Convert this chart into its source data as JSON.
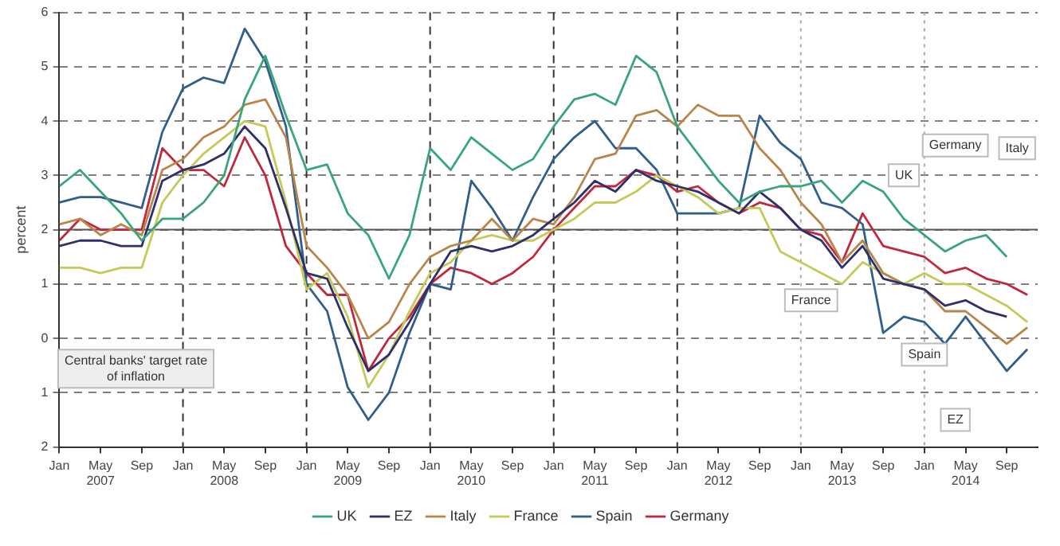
{
  "chart_data": {
    "type": "line",
    "ylabel": "percent",
    "x": [
      "2007-01",
      "2007-03",
      "2007-05",
      "2007-07",
      "2007-09",
      "2007-11",
      "2008-01",
      "2008-03",
      "2008-05",
      "2008-07",
      "2008-09",
      "2008-11",
      "2009-01",
      "2009-03",
      "2009-05",
      "2009-07",
      "2009-09",
      "2009-11",
      "2010-01",
      "2010-03",
      "2010-05",
      "2010-07",
      "2010-09",
      "2010-11",
      "2011-01",
      "2011-03",
      "2011-05",
      "2011-07",
      "2011-09",
      "2011-11",
      "2012-01",
      "2012-03",
      "2012-05",
      "2012-07",
      "2012-09",
      "2012-11",
      "2013-01",
      "2013-03",
      "2013-05",
      "2013-07",
      "2013-09",
      "2013-11",
      "2014-01",
      "2014-03",
      "2014-05",
      "2014-07",
      "2014-09",
      "2014-11"
    ],
    "series": [
      {
        "name": "UK",
        "color": "#3aa57a",
        "values": [
          2.8,
          3.1,
          2.7,
          2.3,
          1.8,
          2.2,
          2.2,
          2.5,
          3.0,
          4.4,
          5.2,
          4.1,
          3.1,
          3.2,
          2.3,
          1.9,
          1.1,
          1.9,
          3.5,
          3.1,
          3.7,
          3.4,
          3.1,
          3.3,
          3.9,
          4.4,
          4.5,
          4.3,
          5.2,
          4.9,
          3.9,
          3.4,
          2.9,
          2.5,
          2.7,
          2.8,
          2.8,
          2.9,
          2.5,
          2.9,
          2.7,
          2.2,
          1.9,
          1.6,
          1.8,
          1.9,
          1.5,
          null
        ]
      },
      {
        "name": "EZ",
        "color": "#2e2f6b",
        "values": [
          1.7,
          1.8,
          1.8,
          1.7,
          1.7,
          2.9,
          3.1,
          3.2,
          3.4,
          3.9,
          3.5,
          2.4,
          1.2,
          1.1,
          0.2,
          -0.6,
          -0.3,
          0.3,
          1.0,
          1.6,
          1.7,
          1.6,
          1.7,
          1.9,
          2.2,
          2.5,
          2.9,
          2.7,
          3.1,
          2.9,
          2.8,
          2.7,
          2.5,
          2.3,
          2.7,
          2.4,
          2.0,
          1.8,
          1.3,
          1.7,
          1.1,
          1.0,
          0.9,
          0.6,
          0.7,
          0.5,
          0.4,
          null
        ]
      },
      {
        "name": "Italy",
        "color": "#b8864a",
        "values": [
          2.1,
          2.2,
          1.9,
          2.1,
          1.9,
          3.1,
          3.3,
          3.7,
          3.9,
          4.3,
          4.4,
          3.7,
          1.7,
          1.3,
          0.8,
          0.0,
          0.3,
          1.0,
          1.5,
          1.7,
          1.8,
          2.2,
          1.8,
          2.2,
          2.1,
          2.6,
          3.3,
          3.4,
          4.1,
          4.2,
          3.9,
          4.3,
          4.1,
          4.1,
          3.5,
          3.1,
          2.5,
          2.1,
          1.4,
          1.8,
          1.2,
          1.0,
          0.9,
          0.5,
          0.5,
          0.2,
          -0.1,
          0.2
        ]
      },
      {
        "name": "France",
        "color": "#c4c95a",
        "values": [
          1.3,
          1.3,
          1.2,
          1.3,
          1.3,
          2.5,
          3.0,
          3.4,
          3.7,
          4.0,
          3.9,
          2.5,
          0.9,
          1.2,
          0.4,
          -0.9,
          -0.3,
          0.5,
          1.2,
          1.4,
          1.8,
          1.9,
          1.8,
          1.8,
          2.0,
          2.2,
          2.5,
          2.5,
          2.7,
          3.0,
          2.8,
          2.6,
          2.3,
          2.4,
          2.4,
          1.6,
          1.4,
          1.2,
          1.0,
          1.4,
          1.2,
          1.0,
          1.2,
          1.0,
          1.0,
          0.8,
          0.6,
          0.3
        ]
      },
      {
        "name": "Spain",
        "color": "#2f5f8a",
        "values": [
          2.5,
          2.6,
          2.6,
          2.5,
          2.4,
          3.8,
          4.6,
          4.8,
          4.7,
          5.7,
          5.1,
          3.9,
          1.0,
          0.5,
          -0.9,
          -1.5,
          -1.0,
          0.1,
          1.0,
          0.9,
          2.9,
          2.4,
          1.8,
          2.6,
          3.3,
          3.7,
          4.0,
          3.5,
          3.5,
          3.1,
          2.3,
          2.3,
          2.3,
          2.4,
          4.1,
          3.6,
          3.3,
          2.5,
          2.4,
          2.1,
          0.1,
          0.4,
          0.3,
          -0.1,
          0.4,
          -0.1,
          -0.6,
          -0.2
        ]
      },
      {
        "name": "Germany",
        "color": "#c0283c",
        "values": [
          1.8,
          2.2,
          2.0,
          2.0,
          2.0,
          3.5,
          3.1,
          3.1,
          2.8,
          3.7,
          3.0,
          1.7,
          1.2,
          0.8,
          0.8,
          -0.6,
          0.0,
          0.4,
          1.0,
          1.3,
          1.2,
          1.0,
          1.2,
          1.5,
          2.0,
          2.4,
          2.8,
          2.8,
          3.1,
          3.0,
          2.7,
          2.8,
          2.5,
          2.3,
          2.5,
          2.4,
          2.0,
          1.9,
          1.4,
          2.3,
          1.7,
          1.6,
          1.5,
          1.2,
          1.3,
          1.1,
          1.0,
          0.8
        ]
      }
    ],
    "xlim": [
      "2007-01",
      "2014-12"
    ],
    "xticks": [
      {
        "value": "2007-01",
        "label": "Jan"
      },
      {
        "value": "2007-05",
        "label": "May\n2007"
      },
      {
        "value": "2007-09",
        "label": "Sep"
      },
      {
        "value": "2008-01",
        "label": "Jan"
      },
      {
        "value": "2008-05",
        "label": "May\n2008"
      },
      {
        "value": "2008-09",
        "label": "Sep"
      },
      {
        "value": "2009-01",
        "label": "Jan"
      },
      {
        "value": "2009-05",
        "label": "May\n2009"
      },
      {
        "value": "2009-09",
        "label": "Sep"
      },
      {
        "value": "2010-01",
        "label": "Jan"
      },
      {
        "value": "2010-05",
        "label": "May\n2010"
      },
      {
        "value": "2010-09",
        "label": "Sep"
      },
      {
        "value": "2011-01",
        "label": "Jan"
      },
      {
        "value": "2011-05",
        "label": "May\n2011"
      },
      {
        "value": "2011-09",
        "label": "Sep"
      },
      {
        "value": "2012-01",
        "label": "Jan"
      },
      {
        "value": "2012-05",
        "label": "May\n2012"
      },
      {
        "value": "2012-09",
        "label": "Sep"
      },
      {
        "value": "2013-01",
        "label": "Jan"
      },
      {
        "value": "2013-05",
        "label": "May\n2013"
      },
      {
        "value": "2013-09",
        "label": "Sep"
      },
      {
        "value": "2014-01",
        "label": "Jan"
      },
      {
        "value": "2014-05",
        "label": "May\n2014"
      },
      {
        "value": "2014-09",
        "label": "Sep"
      }
    ],
    "ylim": [
      -2,
      6
    ],
    "yticks": [
      {
        "value": -2,
        "label": "2"
      },
      {
        "value": -1,
        "label": "1"
      },
      0,
      1,
      2,
      3,
      4,
      5,
      6
    ],
    "grid": "y",
    "legend": "bottom",
    "marker": "none",
    "line_style": "solid",
    "ref_lines": [
      {
        "axis": "y",
        "value": 2,
        "color": "#555555",
        "line_style": "solid"
      },
      {
        "axis": "x",
        "value": "2008-01",
        "color": "#333333",
        "line_style": "dashed"
      },
      {
        "axis": "x",
        "value": "2009-01",
        "color": "#333333",
        "line_style": "dashed"
      },
      {
        "axis": "x",
        "value": "2010-01",
        "color": "#333333",
        "line_style": "dashed"
      },
      {
        "axis": "x",
        "value": "2011-01",
        "color": "#333333",
        "line_style": "dashed"
      },
      {
        "axis": "x",
        "value": "2012-01",
        "color": "#333333",
        "line_style": "dashed"
      },
      {
        "axis": "x",
        "value": "2013-01",
        "color": "#aaaaaa",
        "line_style": "dotted"
      },
      {
        "axis": "x",
        "value": "2014-01",
        "color": "#aaaaaa",
        "line_style": "dotted"
      }
    ],
    "annotations": [
      "Central banks' target rate of inflation",
      {
        "text": "UK",
        "x": "2013-11",
        "y": 3.0
      },
      {
        "text": "Germany",
        "x": "2014-04",
        "y": 3.55
      },
      {
        "text": "Italy",
        "x": "2014-10",
        "y": 3.5
      },
      {
        "text": "France",
        "x": "2013-02",
        "y": 0.7
      },
      {
        "text": "Spain",
        "x": "2014-01",
        "y": -0.3
      },
      {
        "text": "EZ",
        "x": "2014-04",
        "y": -1.5
      }
    ]
  }
}
